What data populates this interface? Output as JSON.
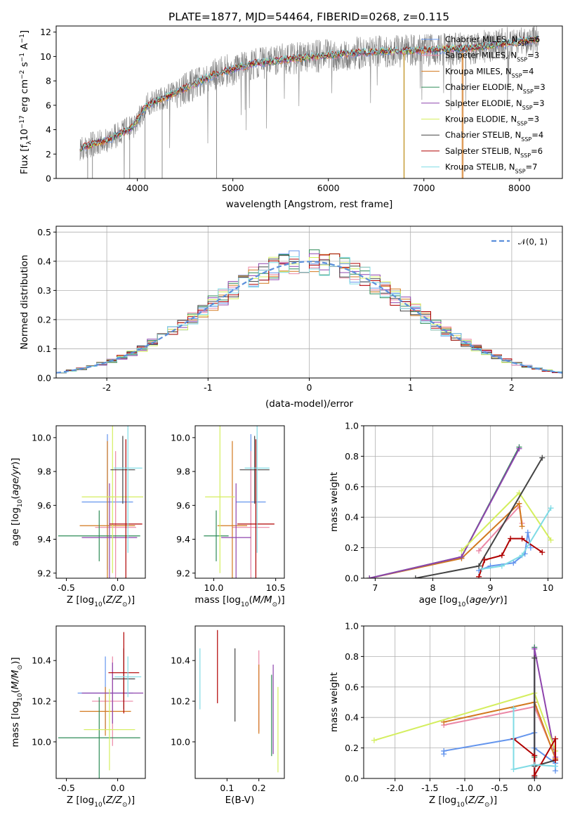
{
  "title": "PLATE=1877, MJD=54464, FIBERID=0268, z=0.115",
  "colors": {
    "chabrier_miles": "#6495ED",
    "salpeter_miles": "#EB87A5",
    "kroupa_miles": "#D2781E",
    "chabrier_elodie": "#2E8B57",
    "salpeter_elodie": "#8E44AD",
    "kroupa_elodie": "#D4EE5E",
    "chabrier_stelib": "#444444",
    "salpeter_stelib": "#B00000",
    "kroupa_stelib": "#7FDBE5",
    "data": "#808080",
    "normal": "#5B8FDB"
  },
  "models": [
    {
      "key": "chabrier_miles",
      "label": "Chabrier MILES, N",
      "sub": "SSP",
      "n": "=6"
    },
    {
      "key": "salpeter_miles",
      "label": "Salpeter MILES, N",
      "sub": "SSP",
      "n": "=3"
    },
    {
      "key": "kroupa_miles",
      "label": "Kroupa MILES, N",
      "sub": "SSP",
      "n": "=4"
    },
    {
      "key": "chabrier_elodie",
      "label": "Chabrier ELODIE, N",
      "sub": "SSP",
      "n": "=3"
    },
    {
      "key": "salpeter_elodie",
      "label": "Salpeter ELODIE, N",
      "sub": "SSP",
      "n": "=3"
    },
    {
      "key": "kroupa_elodie",
      "label": "Kroupa ELODIE, N",
      "sub": "SSP",
      "n": "=3"
    },
    {
      "key": "chabrier_stelib",
      "label": "Chabrier STELIB, N",
      "sub": "SSP",
      "n": "=4"
    },
    {
      "key": "salpeter_stelib",
      "label": "Salpeter STELIB, N",
      "sub": "SSP",
      "n": "=6"
    },
    {
      "key": "kroupa_stelib",
      "label": "Kroupa STELIB, N",
      "sub": "SSP",
      "n": "=7"
    }
  ],
  "chart_data": [
    {
      "id": "spectrum",
      "type": "line",
      "title": "PLATE=1877, MJD=54464, FIBERID=0268, z=0.115",
      "xlabel": "wavelength [Angstrom, rest frame]",
      "ylabel": "Flux [f",
      "xlim": [
        3150,
        8450
      ],
      "ylim": [
        0,
        12.5
      ],
      "xticks": [
        4000,
        5000,
        6000,
        7000,
        8000
      ],
      "yticks": [
        0,
        2,
        4,
        6,
        8,
        10,
        12
      ],
      "continuum_points": [
        [
          3400,
          2.5
        ],
        [
          3700,
          3.2
        ],
        [
          3950,
          4.2
        ],
        [
          4100,
          6.0
        ],
        [
          4400,
          7.0
        ],
        [
          4800,
          8.5
        ],
        [
          5200,
          9.4
        ],
        [
          5600,
          9.8
        ],
        [
          6000,
          10.1
        ],
        [
          6500,
          10.4
        ],
        [
          7000,
          10.5
        ],
        [
          7500,
          10.7
        ],
        [
          8000,
          11.2
        ],
        [
          8200,
          11.4
        ]
      ],
      "legend": "top-right",
      "grid": false
    },
    {
      "id": "residuals",
      "type": "histogram",
      "xlabel": "(data-model)/error",
      "ylabel": "Normed distribution",
      "xlim": [
        -2.5,
        2.5
      ],
      "ylim": [
        0,
        0.52
      ],
      "xticks": [
        -2,
        -1,
        0,
        1,
        2
      ],
      "yticks": [
        0.0,
        0.1,
        0.2,
        0.3,
        0.4,
        0.5
      ],
      "bin_width": 0.1,
      "overlay": "N(0,1)",
      "legend_label": "𝒩(0, 1)",
      "legend": "top-right",
      "grid": true
    },
    {
      "id": "age_vs_Z",
      "type": "errorbar",
      "xlabel": "Z [log10(Z/Z⊙)]",
      "ylabel": "age [log10(age/yr)]",
      "xlim": [
        -0.6,
        0.27
      ],
      "ylim": [
        9.17,
        10.07
      ],
      "xticks": [
        -0.5,
        0.0
      ],
      "yticks": [
        9.2,
        9.4,
        9.6,
        9.8,
        10.0
      ],
      "points": [
        {
          "model": "chabrier_miles",
          "x": -0.1,
          "xerr": 0.25,
          "y": 9.62,
          "yerr": 0.4
        },
        {
          "model": "salpeter_miles",
          "x": -0.02,
          "xerr": 0.2,
          "y": 9.47,
          "yerr": 0.45
        },
        {
          "model": "kroupa_miles",
          "x": -0.1,
          "xerr": 0.27,
          "y": 9.48,
          "yerr": 0.5
        },
        {
          "model": "chabrier_elodie",
          "x": -0.18,
          "xerr": 0.4,
          "y": 9.42,
          "yerr": 0.15
        },
        {
          "model": "salpeter_elodie",
          "x": -0.08,
          "xerr": 0.27,
          "y": 9.41,
          "yerr": 0.32
        },
        {
          "model": "kroupa_elodie",
          "x": -0.05,
          "xerr": 0.3,
          "y": 9.65,
          "yerr": 0.45
        },
        {
          "model": "chabrier_stelib",
          "x": 0.05,
          "xerr": 0.12,
          "y": 9.81,
          "yerr": 0.2
        },
        {
          "model": "salpeter_stelib",
          "x": 0.08,
          "xerr": 0.16,
          "y": 9.49,
          "yerr": 0.5
        },
        {
          "model": "kroupa_stelib",
          "x": 0.1,
          "xerr": 0.14,
          "y": 9.82,
          "yerr": 0.5
        }
      ]
    },
    {
      "id": "age_vs_mass",
      "type": "errorbar",
      "xlabel": "mass [log10(M/M⊙)]",
      "ylabel": "",
      "xlim": [
        9.85,
        10.57
      ],
      "ylim": [
        9.17,
        10.07
      ],
      "xticks": [
        10.0,
        10.5
      ],
      "yticks": [
        9.2,
        9.4,
        9.6,
        9.8,
        10.0
      ],
      "points": [
        {
          "model": "chabrier_miles",
          "x": 10.3,
          "xerr": 0.12,
          "y": 9.62,
          "yerr": 0.4
        },
        {
          "model": "salpeter_miles",
          "x": 10.3,
          "xerr": 0.15,
          "y": 9.47,
          "yerr": 0.45
        },
        {
          "model": "kroupa_miles",
          "x": 10.15,
          "xerr": 0.12,
          "y": 9.48,
          "yerr": 0.5
        },
        {
          "model": "chabrier_elodie",
          "x": 10.02,
          "xerr": 0.1,
          "y": 9.42,
          "yerr": 0.15
        },
        {
          "model": "salpeter_elodie",
          "x": 10.18,
          "xerr": 0.12,
          "y": 9.41,
          "yerr": 0.32
        },
        {
          "model": "kroupa_elodie",
          "x": 10.05,
          "xerr": 0.12,
          "y": 9.65,
          "yerr": 0.45
        },
        {
          "model": "chabrier_stelib",
          "x": 10.33,
          "xerr": 0.12,
          "y": 9.81,
          "yerr": 0.2
        },
        {
          "model": "salpeter_stelib",
          "x": 10.34,
          "xerr": 0.15,
          "y": 9.49,
          "yerr": 0.5
        },
        {
          "model": "kroupa_stelib",
          "x": 10.35,
          "xerr": 0.1,
          "y": 9.82,
          "yerr": 0.5
        }
      ]
    },
    {
      "id": "weight_vs_age",
      "type": "line",
      "xlabel": "age [log10(age/yr)]",
      "ylabel": "mass weight",
      "xlim": [
        6.8,
        10.25
      ],
      "ylim": [
        0,
        1.0
      ],
      "xticks": [
        7,
        8,
        9,
        10
      ],
      "yticks": [
        0.0,
        0.2,
        0.4,
        0.6,
        0.8,
        1.0
      ],
      "grid": true,
      "series": [
        {
          "model": "chabrier_miles",
          "points": [
            [
              8.8,
              0.05
            ],
            [
              9.0,
              0.08
            ],
            [
              9.4,
              0.1
            ],
            [
              9.6,
              0.16
            ],
            [
              9.65,
              0.3
            ],
            [
              9.7,
              0.2
            ]
          ]
        },
        {
          "model": "salpeter_miles",
          "points": [
            [
              8.8,
              0.18
            ],
            [
              9.5,
              0.47
            ],
            [
              9.55,
              0.36
            ]
          ]
        },
        {
          "model": "kroupa_miles",
          "points": [
            [
              6.9,
              0.0
            ],
            [
              8.5,
              0.13
            ],
            [
              9.5,
              0.49
            ],
            [
              9.55,
              0.34
            ]
          ]
        },
        {
          "model": "chabrier_elodie",
          "points": [
            [
              6.9,
              0.0
            ],
            [
              8.5,
              0.14
            ],
            [
              9.5,
              0.86
            ]
          ]
        },
        {
          "model": "salpeter_elodie",
          "points": [
            [
              6.9,
              0.0
            ],
            [
              8.5,
              0.14
            ],
            [
              9.5,
              0.85
            ]
          ]
        },
        {
          "model": "kroupa_elodie",
          "points": [
            [
              8.5,
              0.18
            ],
            [
              9.5,
              0.56
            ],
            [
              10.05,
              0.25
            ]
          ]
        },
        {
          "model": "chabrier_stelib",
          "points": [
            [
              7.7,
              0.0
            ],
            [
              8.8,
              0.08
            ],
            [
              9.9,
              0.79
            ]
          ]
        },
        {
          "model": "salpeter_stelib",
          "points": [
            [
              8.8,
              0.01
            ],
            [
              8.9,
              0.12
            ],
            [
              9.2,
              0.15
            ],
            [
              9.35,
              0.26
            ],
            [
              9.55,
              0.26
            ],
            [
              9.9,
              0.17
            ]
          ]
        },
        {
          "model": "kroupa_stelib",
          "points": [
            [
              8.85,
              0.06
            ],
            [
              9.2,
              0.08
            ],
            [
              9.55,
              0.15
            ],
            [
              10.05,
              0.46
            ]
          ]
        }
      ]
    },
    {
      "id": "mass_vs_Z",
      "type": "errorbar",
      "xlabel": "Z [log10(Z/Z⊙)]",
      "ylabel": "mass [log10(M/M⊙)]",
      "xlim": [
        -0.6,
        0.27
      ],
      "ylim": [
        9.82,
        10.57
      ],
      "xticks": [
        -0.5,
        0.0
      ],
      "yticks": [
        10.0,
        10.2,
        10.4
      ],
      "points": [
        {
          "model": "chabrier_miles",
          "x": -0.12,
          "xerr": 0.27,
          "y": 10.24,
          "yerr": 0.18
        },
        {
          "model": "salpeter_miles",
          "x": -0.05,
          "xerr": 0.2,
          "y": 10.2,
          "yerr": 0.22
        },
        {
          "model": "kroupa_miles",
          "x": -0.12,
          "xerr": 0.25,
          "y": 10.15,
          "yerr": 0.12
        },
        {
          "model": "chabrier_elodie",
          "x": -0.18,
          "xerr": 0.4,
          "y": 10.02,
          "yerr": 0.2
        },
        {
          "model": "salpeter_elodie",
          "x": -0.05,
          "xerr": 0.3,
          "y": 10.24,
          "yerr": 0.15
        },
        {
          "model": "kroupa_elodie",
          "x": -0.08,
          "xerr": 0.25,
          "y": 10.06,
          "yerr": 0.2
        },
        {
          "model": "chabrier_stelib",
          "x": 0.06,
          "xerr": 0.11,
          "y": 10.31,
          "yerr": 0.15
        },
        {
          "model": "salpeter_stelib",
          "x": 0.06,
          "xerr": 0.15,
          "y": 10.34,
          "yerr": 0.2
        },
        {
          "model": "kroupa_stelib",
          "x": 0.1,
          "xerr": 0.13,
          "y": 10.32,
          "yerr": 0.1
        }
      ]
    },
    {
      "id": "mass_vs_ebv",
      "type": "errorbar",
      "xlabel": "E(B-V)",
      "ylabel": "",
      "xlim": [
        0.0,
        0.28
      ],
      "ylim": [
        9.82,
        10.57
      ],
      "xticks": [
        0.1,
        0.2
      ],
      "yticks": [
        10.0,
        10.2,
        10.4
      ],
      "points": [
        {
          "model": "kroupa_stelib",
          "x": 0.015,
          "y": 10.31,
          "yerr": 0.15
        },
        {
          "model": "salpeter_stelib",
          "x": 0.07,
          "y": 10.37,
          "yerr": 0.18
        },
        {
          "model": "chabrier_stelib",
          "x": 0.125,
          "y": 10.28,
          "yerr": 0.18
        },
        {
          "model": "salpeter_miles",
          "x": 0.2,
          "y": 10.25,
          "yerr": 0.2
        },
        {
          "model": "kroupa_miles",
          "x": 0.2,
          "y": 10.21,
          "yerr": 0.17
        },
        {
          "model": "chabrier_elodie",
          "x": 0.24,
          "y": 10.13,
          "yerr": 0.2
        },
        {
          "model": "salpeter_elodie",
          "x": 0.245,
          "y": 10.16,
          "yerr": 0.22
        },
        {
          "model": "kroupa_elodie",
          "x": 0.26,
          "y": 10.06,
          "yerr": 0.21
        }
      ]
    },
    {
      "id": "weight_vs_Z",
      "type": "line",
      "xlabel": "Z [log10(Z/Z⊙)]",
      "ylabel": "mass weight",
      "xlim": [
        -2.45,
        0.4
      ],
      "ylim": [
        0,
        1.0
      ],
      "xticks": [
        -2.0,
        -1.5,
        -1.0,
        -0.5,
        0.0
      ],
      "yticks": [
        0.0,
        0.2,
        0.4,
        0.6,
        0.8,
        1.0
      ],
      "grid": true,
      "series": [
        {
          "model": "chabrier_miles",
          "points": [
            [
              -1.3,
              0.16
            ],
            [
              -1.3,
              0.18
            ],
            [
              -0.3,
              0.26
            ],
            [
              0.0,
              0.3
            ],
            [
              0.0,
              0.2
            ],
            [
              0.3,
              0.1
            ],
            [
              0.3,
              0.05
            ]
          ]
        },
        {
          "model": "salpeter_miles",
          "points": [
            [
              -1.3,
              0.35
            ],
            [
              0.0,
              0.47
            ],
            [
              0.3,
              0.14
            ]
          ]
        },
        {
          "model": "kroupa_miles",
          "points": [
            [
              -1.3,
              0.37
            ],
            [
              0.0,
              0.5
            ],
            [
              0.3,
              0.13
            ]
          ]
        },
        {
          "model": "chabrier_elodie",
          "points": [
            [
              0.0,
              0.0
            ],
            [
              0.0,
              0.86
            ],
            [
              0.0,
              0.14
            ]
          ]
        },
        {
          "model": "salpeter_elodie",
          "points": [
            [
              0.0,
              0.0
            ],
            [
              0.0,
              0.85
            ],
            [
              0.3,
              0.14
            ]
          ]
        },
        {
          "model": "kroupa_elodie",
          "points": [
            [
              -2.3,
              0.25
            ],
            [
              0.0,
              0.56
            ],
            [
              0.3,
              0.18
            ]
          ]
        },
        {
          "model": "chabrier_stelib",
          "points": [
            [
              0.0,
              0.01
            ],
            [
              0.0,
              0.79
            ],
            [
              0.0,
              0.08
            ],
            [
              0.3,
              0.12
            ]
          ]
        },
        {
          "model": "salpeter_stelib",
          "points": [
            [
              -0.3,
              0.26
            ],
            [
              0.0,
              0.15
            ],
            [
              0.0,
              0.02
            ],
            [
              0.3,
              0.26
            ],
            [
              0.3,
              0.12
            ]
          ]
        },
        {
          "model": "kroupa_stelib",
          "points": [
            [
              -0.3,
              0.46
            ],
            [
              -0.3,
              0.06
            ],
            [
              0.0,
              0.09
            ],
            [
              0.3,
              0.08
            ]
          ]
        }
      ]
    }
  ]
}
